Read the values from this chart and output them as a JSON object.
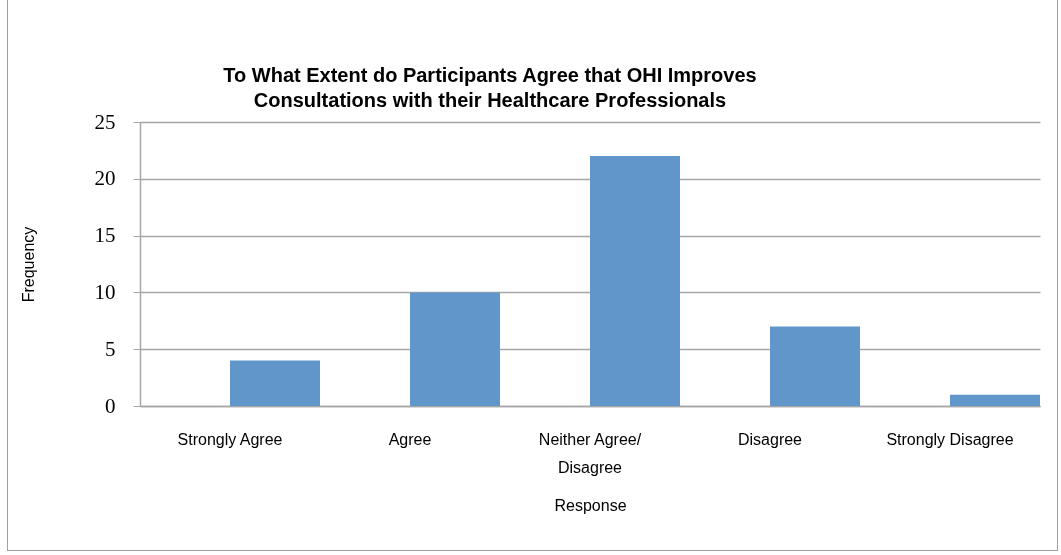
{
  "chart_data": {
    "type": "bar",
    "title": "To What Extent do Participants Agree that OHI Improves Consultations with their Healthcare Professionals",
    "xlabel": "Response",
    "ylabel": "Frequency",
    "categories": [
      "Strongly Agree",
      "Agree",
      "Neither Agree/ Disagree",
      "Disagree",
      "Strongly Disagree"
    ],
    "values": [
      4,
      10,
      22,
      7,
      1
    ],
    "color": "#6096c9",
    "ylim": [
      0,
      25
    ],
    "yticks": [
      0,
      5,
      10,
      15,
      20,
      25
    ],
    "grid": "y"
  }
}
